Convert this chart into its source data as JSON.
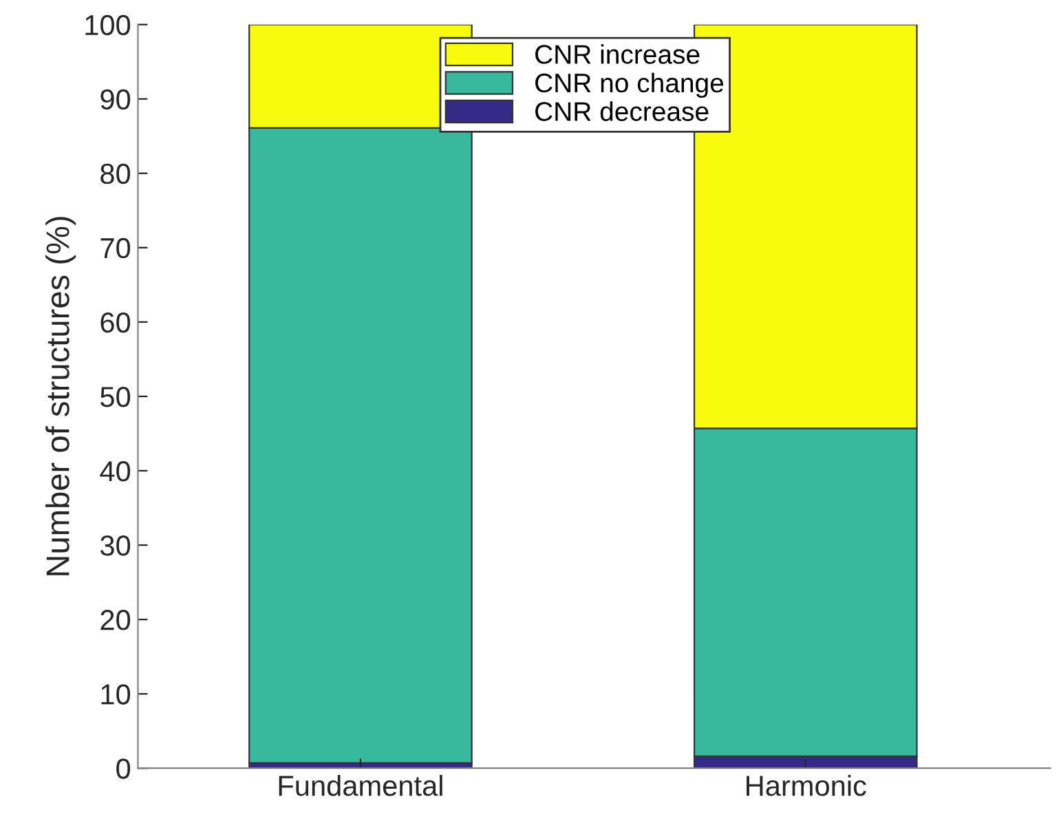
{
  "chart_data": {
    "type": "bar",
    "stacked": true,
    "ylabel": "Number of structures (%)",
    "categories": [
      "Fundamental",
      "Harmonic"
    ],
    "series": [
      {
        "name": "CNR decrease",
        "color": "#352a87",
        "values": [
          0.7,
          1.6
        ]
      },
      {
        "name": "CNR no change",
        "color": "#38b99e",
        "values": [
          85.4,
          44.1
        ]
      },
      {
        "name": "CNR increase",
        "color": "#f9fb0e",
        "values": [
          13.9,
          54.3
        ]
      }
    ],
    "ylim": [
      0,
      100
    ],
    "yticks": [
      0,
      10,
      20,
      30,
      40,
      50,
      60,
      70,
      80,
      90,
      100
    ],
    "grid": false,
    "legend": "top"
  }
}
